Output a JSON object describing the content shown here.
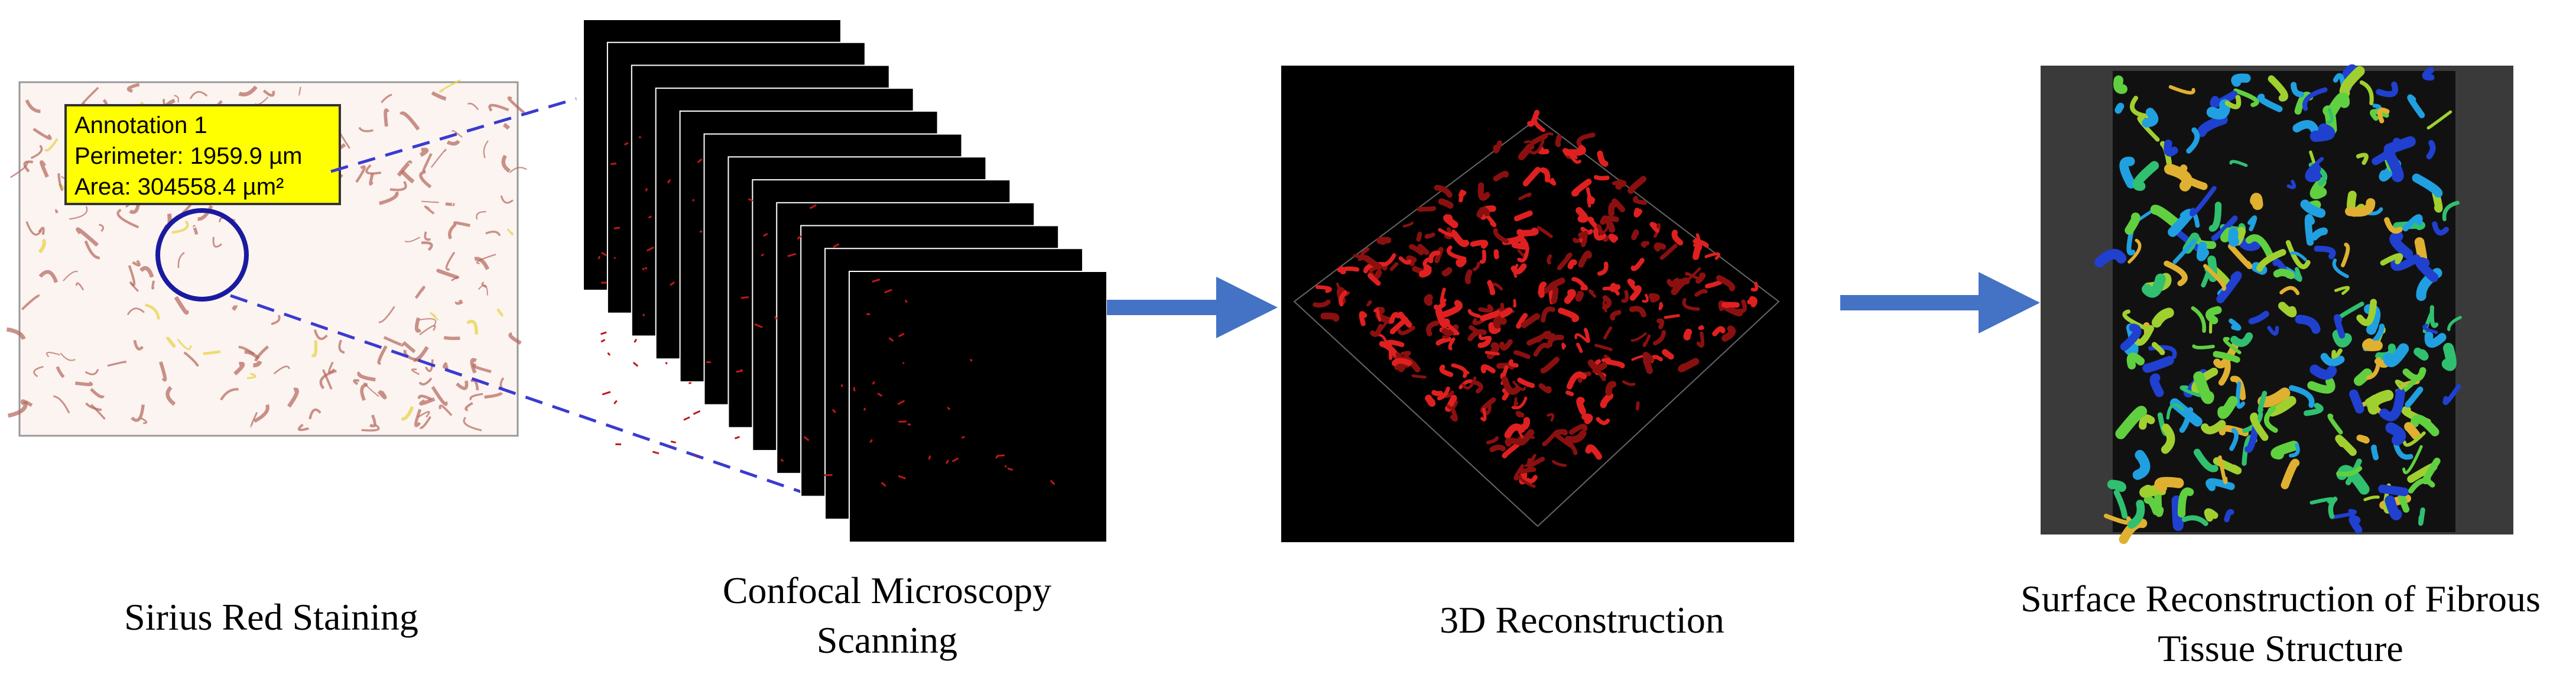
{
  "annotation": {
    "title": "Annotation 1",
    "perimeter": "Perimeter: 1959.9 µm",
    "area": "Area: 304558.4 µm²"
  },
  "steps": [
    {
      "label_lines": [
        "Sirius Red Staining"
      ]
    },
    {
      "label_lines": [
        "Confocal Microscopy",
        "Scanning"
      ]
    },
    {
      "label_lines": [
        "3D Reconstruction"
      ]
    },
    {
      "label_lines": [
        "Surface Reconstruction of Fibrous",
        "Tissue Structure"
      ]
    }
  ]
}
